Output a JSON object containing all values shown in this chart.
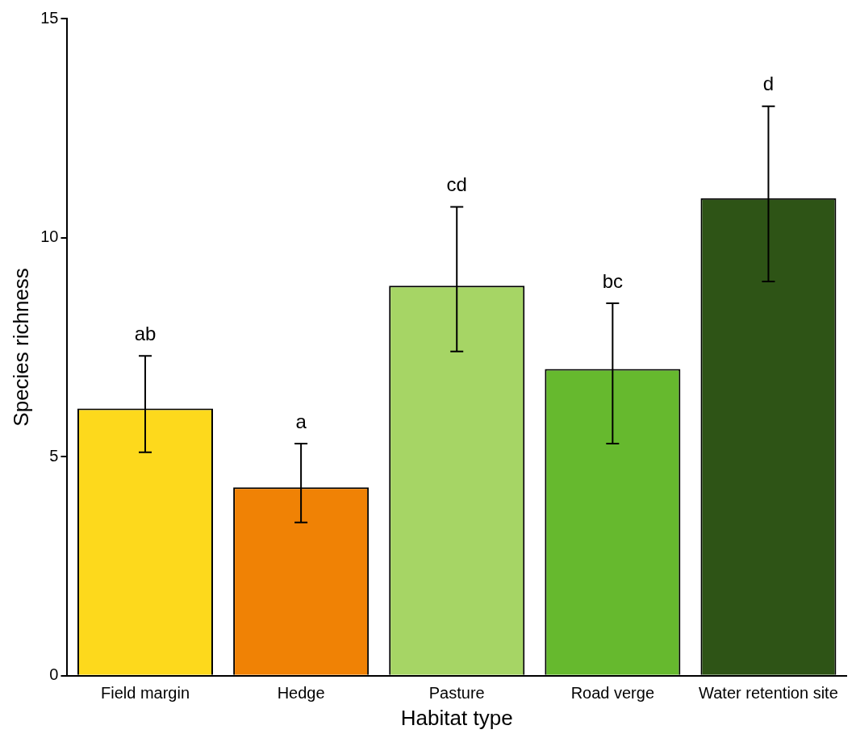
{
  "chart_data": {
    "type": "bar",
    "xlabel": "Habitat type",
    "ylabel": "Species richness",
    "categories": [
      "Field margin",
      "Hedge",
      "Pasture",
      "Road verge",
      "Water retention site"
    ],
    "values": [
      6.1,
      4.3,
      8.9,
      7.0,
      10.9
    ],
    "colors": [
      "#fdd91c",
      "#f08205",
      "#a6d565",
      "#66b92e",
      "#2e5416"
    ],
    "errors": [
      [
        5.1,
        7.3
      ],
      [
        3.5,
        5.3
      ],
      [
        7.4,
        10.7
      ],
      [
        5.3,
        8.5
      ],
      [
        9.0,
        13.0
      ]
    ],
    "ylim": [
      0,
      15
    ],
    "yticks": [
      0,
      5,
      10,
      15
    ],
    "grid": false,
    "legend": false,
    "annotations": [
      {
        "text": "ab",
        "x": "Field margin",
        "y": 7.3
      },
      {
        "text": "a",
        "x": "Hedge",
        "y": 5.3
      },
      {
        "text": "cd",
        "x": "Pasture",
        "y": 10.7
      },
      {
        "text": "bc",
        "x": "Road verge",
        "y": 8.5
      },
      {
        "text": "d",
        "x": "Water retention site",
        "y": 13.0
      }
    ]
  }
}
